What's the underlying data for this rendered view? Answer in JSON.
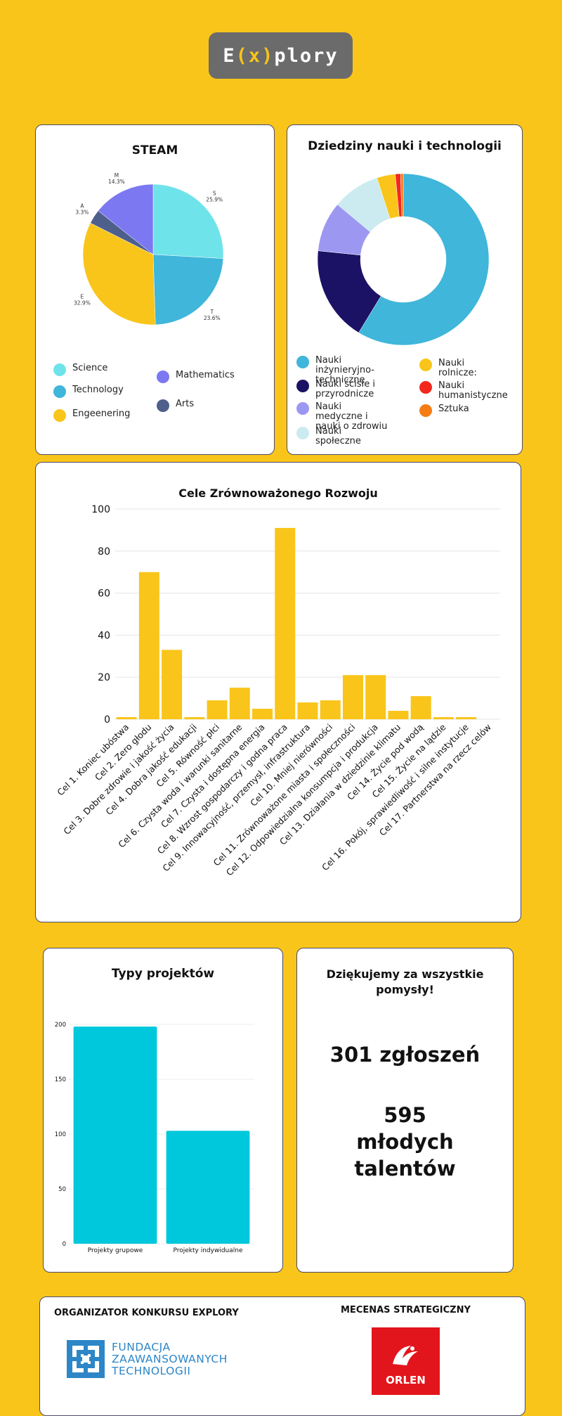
{
  "logo": {
    "prefix": "E",
    "open": "(",
    "mark": "x",
    "close": ")",
    "suffix": "plory"
  },
  "steam": {
    "title": "STEAM",
    "colors": {
      "S": "#6FE3EA",
      "T": "#3FB6DA",
      "E": "#F9C51A",
      "A": "#4E5F8C",
      "M": "#7B78F2"
    },
    "legend": [
      "Science",
      "Technology",
      "Engeenering",
      "Mathematics",
      "Arts"
    ]
  },
  "domains": {
    "title": "Dziedziny nauki i technologii",
    "legend": [
      {
        "label": "Nauki inżynieryjno-techniczne",
        "color": "#3FB6DA"
      },
      {
        "label": "Nauki ścisłe i przyrodnicze",
        "color": "#1B1265"
      },
      {
        "label": "Nauki medyczne i nauki o zdrowiu",
        "color": "#9C98F2"
      },
      {
        "label": "Nauki społeczne",
        "color": "#CBEBF0"
      },
      {
        "label": "Nauki rolnicze:",
        "color": "#F9C51A"
      },
      {
        "label": "Nauki humanistyczne",
        "color": "#F4271C"
      },
      {
        "label": "Sztuka",
        "color": "#F57C14"
      }
    ]
  },
  "sdg": {
    "title": "Cele Zrównoważonego Rozwoju",
    "bar_color": "#F9C51A"
  },
  "types": {
    "title": "Typy projektów",
    "bar_color": "#00C8DC"
  },
  "thanks": {
    "title": "Dziękujemy za wszystkie pomysły!",
    "line1": "301 zgłoszeń",
    "line2": "595 młodych talentów"
  },
  "footer": {
    "organizer": "ORGANIZATOR KONKURSU EXPLORY",
    "sponsor": "MECENAS STRATEGICZNY",
    "fat_line1": "FUNDACJA",
    "fat_line2": "ZAAWANSOWANYCH",
    "fat_line3": "TECHNOLOGII",
    "orlen": "ORLEN"
  },
  "chart_data": [
    {
      "type": "pie",
      "title": "STEAM",
      "labels": [
        "S",
        "T",
        "E",
        "A",
        "M"
      ],
      "values": [
        25.9,
        23.6,
        32.9,
        3.3,
        14.3
      ],
      "value_labels": [
        "25.9%",
        "23.6%",
        "32.9%",
        "3.3%",
        "14.3%"
      ],
      "legend": [
        "Science",
        "Technology",
        "Engeenering",
        "Mathematics",
        "Arts"
      ],
      "legend_position": "bottom"
    },
    {
      "type": "pie",
      "title": "Dziedziny nauki i technologii",
      "donut": true,
      "labels": [
        "Nauki inżynieryjno-techniczne",
        "Nauki ścisłe i przyrodnicze",
        "Nauki medyczne i nauki o zdrowiu",
        "Nauki społeczne",
        "Nauki rolnicze:",
        "Nauki humanistyczne",
        "Sztuka"
      ],
      "values": [
        59,
        18,
        9.5,
        9,
        3.5,
        1,
        0.5
      ],
      "legend_position": "bottom"
    },
    {
      "type": "bar",
      "title": "Cele Zrównoważonego Rozwoju",
      "categories": [
        "Cel 1. Koniec ubóstwa",
        "Cel 2. Zero głodu",
        "Cel 3. Dobre zdrowie i jakość życia",
        "Cel 4. Dobra jakość edukacji",
        "Cel 5. Równość płci",
        "Cel 6. Czysta woda i warunki sanitarne",
        "Cel 7. Czysta i dostępna energia",
        "Cel 8. Wzrost gospodarczy i godna praca",
        "Cel 9. Innowacyjność, przemysł, infrastruktura",
        "Cel 10. Mniej nierówności",
        "Cel 11. Zrównoważone miasta i społeczności",
        "Cel 12. Odpowiedzialna konsumpcja i produkcja",
        "Cel 13. Działania w dziedzinie klimatu",
        "Cel 14. Życie pod wodą",
        "Cel 15. Życie na lądzie",
        "Cel 16. Pokój, sprawiedliwość i silne instytucje",
        "Cel 17. Partnerstwa na rzecz celów"
      ],
      "values": [
        1,
        70,
        33,
        1,
        9,
        15,
        5,
        91,
        8,
        9,
        21,
        21,
        4,
        11,
        1,
        1,
        0
      ],
      "ylim": [
        0,
        100
      ],
      "yticks": [
        0,
        20,
        40,
        60,
        80,
        100
      ],
      "grid": true
    },
    {
      "type": "bar",
      "title": "Typy projektów",
      "categories": [
        "Projekty grupowe",
        "Projekty indywidualne"
      ],
      "values": [
        198,
        103
      ],
      "ylim": [
        0,
        200
      ],
      "yticks": [
        0,
        50,
        100,
        150,
        200
      ],
      "grid": true
    }
  ]
}
